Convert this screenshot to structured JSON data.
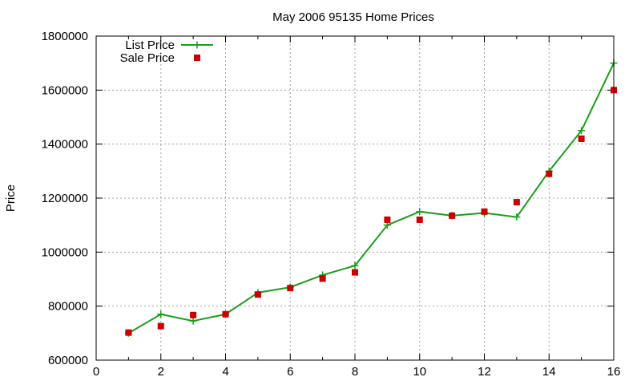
{
  "chart_data": {
    "type": "line",
    "title": "May 2006 95135 Home Prices",
    "xlabel": "",
    "ylabel": "Price",
    "xlim": [
      0,
      16
    ],
    "ylim": [
      600000,
      1800000
    ],
    "xticks": [
      "0",
      "2",
      "4",
      "6",
      "8",
      "10",
      "12",
      "14",
      "16"
    ],
    "yticks": [
      "600000",
      "800000",
      "1000000",
      "1200000",
      "1400000",
      "1600000",
      "1800000"
    ],
    "grid": true,
    "legend_position": "top-left",
    "x": [
      1,
      2,
      3,
      4,
      5,
      6,
      7,
      8,
      9,
      10,
      11,
      12,
      13,
      14,
      15,
      16
    ],
    "series": [
      {
        "name": "List Price",
        "style": "linespoints",
        "marker": "plus",
        "color": "#1a9e1a",
        "values": [
          700000,
          770000,
          745000,
          770000,
          850000,
          870000,
          915000,
          950000,
          1100000,
          1150000,
          1135000,
          1145000,
          1130000,
          1300000,
          1450000,
          1700000
        ]
      },
      {
        "name": "Sale Price",
        "style": "points",
        "marker": "square",
        "color": "#cc0000",
        "values": [
          702000,
          726000,
          767000,
          770000,
          843000,
          867000,
          902000,
          925000,
          1120000,
          1120000,
          1135000,
          1150000,
          1185000,
          1290000,
          1420000,
          1600000
        ]
      }
    ]
  }
}
